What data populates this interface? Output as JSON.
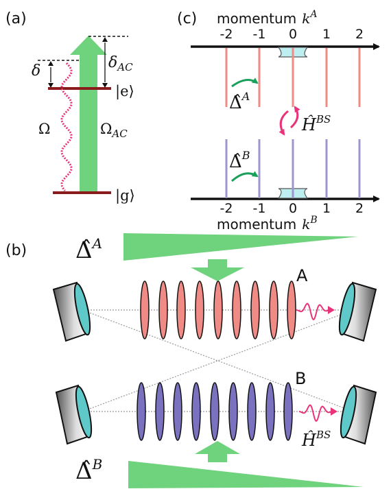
{
  "panels": {
    "a": "(a)",
    "b": "(b)",
    "c": "(c)"
  },
  "panel_a": {
    "delta": "δ",
    "delta_ac": "δ",
    "delta_ac_sub": "AC",
    "excited_state": "|e⟩",
    "ground_state": "|g⟩",
    "omega": "Ω",
    "omega_ac": "Ω",
    "omega_ac_sub": "AC"
  },
  "panel_c": {
    "top_axis_label": "momentum",
    "top_axis_var": "k",
    "top_axis_sup": "A",
    "bottom_axis_label": "momentum",
    "bottom_axis_var": "k",
    "bottom_axis_sup": "B",
    "ticks": [
      "-2",
      "-1",
      "0",
      "1",
      "2"
    ],
    "delta_hat": "Δ̂",
    "delta_a_sup": "A",
    "delta_b_sup": "B",
    "h_hat": "Ĥ",
    "h_sup": "BS"
  },
  "panel_b": {
    "cloud_a": "A",
    "cloud_b": "B",
    "delta_hat": "Δ̂",
    "delta_a_sup": "A",
    "delta_b_sup": "B",
    "h_hat": "Ĥ",
    "h_sup": "BS"
  },
  "colors": {
    "green": "#6fd27c",
    "red_line": "#f08a84",
    "purple_line": "#9f95cc",
    "dark_red": "#8b1a1a",
    "magenta": "#e8337a",
    "arrow_green": "#1aa05a",
    "cyan": "#5fc8c8"
  }
}
